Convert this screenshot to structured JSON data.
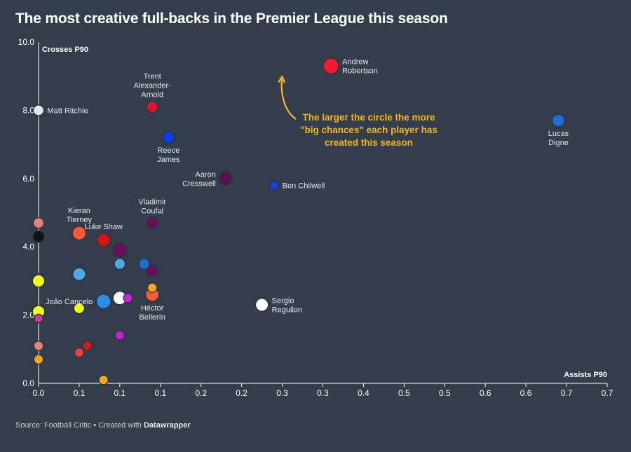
{
  "title": "The most creative full-backs in the Premier League this season",
  "footer": {
    "source": "Source: Football Critic • Created with ",
    "brand": "Datawrapper"
  },
  "chart_data": {
    "type": "scatter",
    "xlabel": "Assists P90",
    "ylabel": "Crosses P90",
    "xlim": [
      0,
      0.7
    ],
    "ylim": [
      0,
      10
    ],
    "x_ticks": [
      {
        "value": 0,
        "label": "0.0"
      },
      {
        "value": 0.05,
        "label": "0.1"
      },
      {
        "value": 0.1,
        "label": "0.1"
      },
      {
        "value": 0.15,
        "label": "0.1"
      },
      {
        "value": 0.2,
        "label": "0.2"
      },
      {
        "value": 0.25,
        "label": "0.2"
      },
      {
        "value": 0.3,
        "label": "0.3"
      },
      {
        "value": 0.35,
        "label": "0.3"
      },
      {
        "value": 0.4,
        "label": "0.4"
      },
      {
        "value": 0.45,
        "label": "0.5"
      },
      {
        "value": 0.5,
        "label": "0.5"
      },
      {
        "value": 0.55,
        "label": "0.6"
      },
      {
        "value": 0.6,
        "label": "0.6"
      },
      {
        "value": 0.65,
        "label": "0.7"
      },
      {
        "value": 0.7,
        "label": "0.7"
      }
    ],
    "y_ticks": [
      {
        "value": 0,
        "label": "0.0"
      },
      {
        "value": 2,
        "label": "2.0"
      },
      {
        "value": 4,
        "label": "4.0"
      },
      {
        "value": 6,
        "label": "6.0"
      },
      {
        "value": 8,
        "label": "8.0"
      },
      {
        "value": 10,
        "label": "10.0"
      }
    ],
    "grid": false,
    "points": [
      {
        "x": 0.36,
        "y": 9.3,
        "size": 3.2,
        "color": "#f5192f",
        "label": [
          "Andrew",
          "Robertson"
        ],
        "label_pos": "right"
      },
      {
        "x": 0.64,
        "y": 7.7,
        "size": 2.2,
        "color": "#1f6fd1",
        "label": [
          "Lucas",
          "Digne"
        ],
        "label_pos": "below"
      },
      {
        "x": 0.0,
        "y": 8.0,
        "size": 1.6,
        "color": "#e4e6ea",
        "label": [
          "Matt Ritchie"
        ],
        "label_pos": "right"
      },
      {
        "x": 0.14,
        "y": 8.1,
        "size": 1.8,
        "color": "#e0152b",
        "label": [
          "Trent",
          "Alexander-",
          "Arnold"
        ],
        "label_pos": "above"
      },
      {
        "x": 0.16,
        "y": 7.2,
        "size": 2.0,
        "color": "#0a40e0",
        "label": [
          "Reece",
          "James"
        ],
        "label_pos": "below"
      },
      {
        "x": 0.23,
        "y": 6.0,
        "size": 2.1,
        "color": "#5a1050",
        "label": [
          "Aaron",
          "Cresswell"
        ],
        "label_pos": "left"
      },
      {
        "x": 0.29,
        "y": 5.8,
        "size": 1.2,
        "color": "#1a3fd6",
        "label": [
          "Ben Chilwell"
        ],
        "label_pos": "right"
      },
      {
        "x": 0.14,
        "y": 4.7,
        "size": 1.7,
        "color": "#6b0f5c",
        "label": [
          "Vladimir",
          "Coufal"
        ],
        "label_pos": "above"
      },
      {
        "x": 0.05,
        "y": 4.4,
        "size": 2.6,
        "color": "#ff5a38",
        "label": [
          "Kieran",
          "Tierney"
        ],
        "label_pos": "above"
      },
      {
        "x": 0.08,
        "y": 4.2,
        "size": 2.5,
        "color": "#d01616",
        "label": [
          "Luke Shaw"
        ],
        "label_pos": "above"
      },
      {
        "x": 0.275,
        "y": 2.3,
        "size": 2.3,
        "color": "#ffffff",
        "label": [
          "Sergio",
          "Reguilon"
        ],
        "label_pos": "right"
      },
      {
        "x": 0.08,
        "y": 2.4,
        "size": 2.9,
        "color": "#2a8de8",
        "label": [
          "João Cancelo"
        ],
        "label_pos": "left"
      },
      {
        "x": 0.14,
        "y": 2.6,
        "size": 2.5,
        "color": "#ff5a38",
        "label": [
          "Héctor",
          "Bellerín"
        ],
        "label_pos": "below"
      },
      {
        "x": 0.0,
        "y": 4.7,
        "size": 1.6,
        "color": "#e88080",
        "label": [],
        "label_pos": "none"
      },
      {
        "x": 0.0,
        "y": 4.3,
        "size": 1.8,
        "color": "#111111",
        "label": [],
        "label_pos": "none"
      },
      {
        "x": 0.0,
        "y": 3.1,
        "size": 0.9,
        "color": "#cc22cc",
        "label": [],
        "label_pos": "none"
      },
      {
        "x": 0.0,
        "y": 3.0,
        "size": 2.1,
        "color": "#f0ff1a",
        "label": [],
        "label_pos": "none"
      },
      {
        "x": 0.0,
        "y": 2.1,
        "size": 2.1,
        "color": "#f0ff1a",
        "label": [],
        "label_pos": "none"
      },
      {
        "x": 0.0,
        "y": 1.9,
        "size": 1.0,
        "color": "#c83c9a",
        "label": [],
        "label_pos": "none"
      },
      {
        "x": 0.0,
        "y": 1.1,
        "size": 1.2,
        "color": "#e88080",
        "label": [],
        "label_pos": "none"
      },
      {
        "x": 0.0,
        "y": 0.7,
        "size": 1.2,
        "color": "#f5a623",
        "label": [],
        "label_pos": "none"
      },
      {
        "x": 0.05,
        "y": 3.2,
        "size": 2.3,
        "color": "#4fa8e6",
        "label": [],
        "label_pos": "none"
      },
      {
        "x": 0.05,
        "y": 2.2,
        "size": 1.6,
        "color": "#f0ff1a",
        "label": [],
        "label_pos": "none"
      },
      {
        "x": 0.05,
        "y": 0.9,
        "size": 1.2,
        "color": "#e84040",
        "label": [],
        "label_pos": "none"
      },
      {
        "x": 0.06,
        "y": 1.1,
        "size": 1.2,
        "color": "#d41a1a",
        "label": [],
        "label_pos": "none"
      },
      {
        "x": 0.08,
        "y": 0.1,
        "size": 1.2,
        "color": "#f5a623",
        "label": [],
        "label_pos": "none"
      },
      {
        "x": 0.1,
        "y": 3.9,
        "size": 2.6,
        "color": "#6b0f5c",
        "label": [],
        "label_pos": "none"
      },
      {
        "x": 0.1,
        "y": 3.5,
        "size": 1.7,
        "color": "#4fa8e6",
        "label": [],
        "label_pos": "none"
      },
      {
        "x": 0.1,
        "y": 2.5,
        "size": 2.5,
        "color": "#ffffff",
        "label": [],
        "label_pos": "none"
      },
      {
        "x": 0.11,
        "y": 2.5,
        "size": 1.1,
        "color": "#d020e0",
        "label": [],
        "label_pos": "none"
      },
      {
        "x": 0.1,
        "y": 1.4,
        "size": 1.2,
        "color": "#c020d0",
        "label": [],
        "label_pos": "none"
      },
      {
        "x": 0.13,
        "y": 3.5,
        "size": 1.7,
        "color": "#1f6fd1",
        "label": [],
        "label_pos": "none"
      },
      {
        "x": 0.14,
        "y": 3.3,
        "size": 1.7,
        "color": "#6b0f5c",
        "label": [],
        "label_pos": "none"
      },
      {
        "x": 0.14,
        "y": 2.8,
        "size": 1.2,
        "color": "#f5a623",
        "label": [],
        "label_pos": "none"
      }
    ],
    "annotation": {
      "text": [
        "The larger the circle the more",
        "\"big chances\" each player has",
        "created this season"
      ],
      "color": "#f5b81c"
    }
  }
}
